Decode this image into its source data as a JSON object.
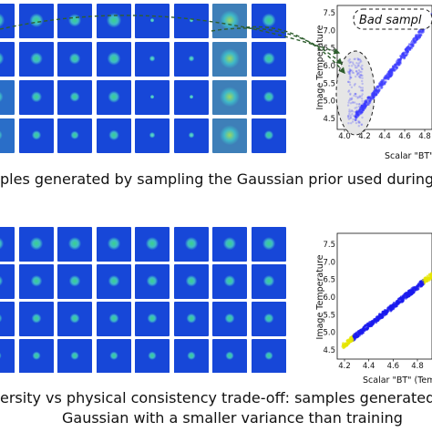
{
  "top_panel": {
    "caption": "ples generated by sampling the Gaussian prior used during",
    "grid_rows": 4,
    "grid_cols": 8,
    "plot": {
      "annotation": "Bad sampl",
      "xlabel": "Scalar \"BT\" (Tem",
      "ylabel": "Image Temperature",
      "xticks": [
        "4.0",
        "4.2",
        "4.4",
        "4.6",
        "4.8"
      ],
      "yticks": [
        "4.5",
        "5.0",
        "5.5",
        "6.0",
        "6.5",
        "7.0",
        "7.5"
      ],
      "colors": {
        "points": "#3a3aff",
        "ellipse_fill": "#e6e6e6",
        "arrow": "#2e5e2e"
      }
    }
  },
  "bottom_panel": {
    "caption_line1": "ersity vs physical consistency trade-off: samples generated",
    "caption_line2": "Gaussian with a smaller variance than training",
    "grid_rows": 4,
    "grid_cols": 8,
    "plot": {
      "xlabel": "Scalar \"BT\" (Tem",
      "ylabel": "Image Temperature",
      "xticks": [
        "4.2",
        "4.4",
        "4.6",
        "4.8"
      ],
      "yticks": [
        "4.5",
        "5.0",
        "5.5",
        "6.0",
        "6.5",
        "7.0",
        "7.5"
      ],
      "colors": {
        "points": "#1a1aee",
        "ends": "#e6e600"
      }
    }
  }
}
